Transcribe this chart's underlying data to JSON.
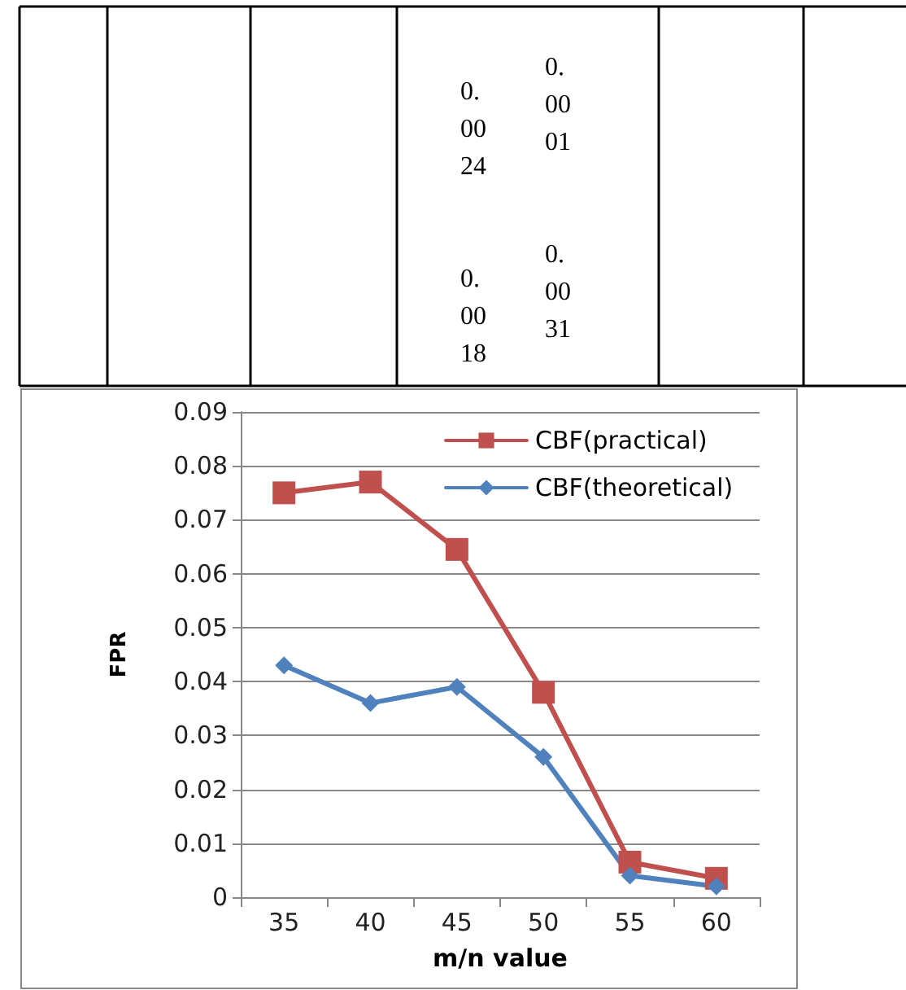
{
  "chart_data": {
    "type": "line",
    "xlabel": "m/n value",
    "ylabel": "FPR",
    "categories": [
      "35",
      "40",
      "45",
      "50",
      "55",
      "60"
    ],
    "series": [
      {
        "name": "CBF(practical)",
        "color": "#c0504d",
        "marker": "square",
        "values": [
          0.075,
          0.077,
          0.0645,
          0.038,
          0.0065,
          0.0035
        ]
      },
      {
        "name": "CBF(theoretical)",
        "color": "#4f81bd",
        "marker": "diamond",
        "values": [
          0.043,
          0.036,
          0.039,
          0.026,
          0.004,
          0.002
        ]
      }
    ],
    "ylim": [
      0,
      0.09
    ],
    "yticks": [
      0,
      0.01,
      0.02,
      0.03,
      0.04,
      0.05,
      0.06,
      0.07,
      0.08,
      0.09
    ],
    "grid": "y",
    "legend": "top right",
    "annotations": [
      "0.0024",
      "0.0001",
      "0.0018",
      "0.0031"
    ]
  }
}
